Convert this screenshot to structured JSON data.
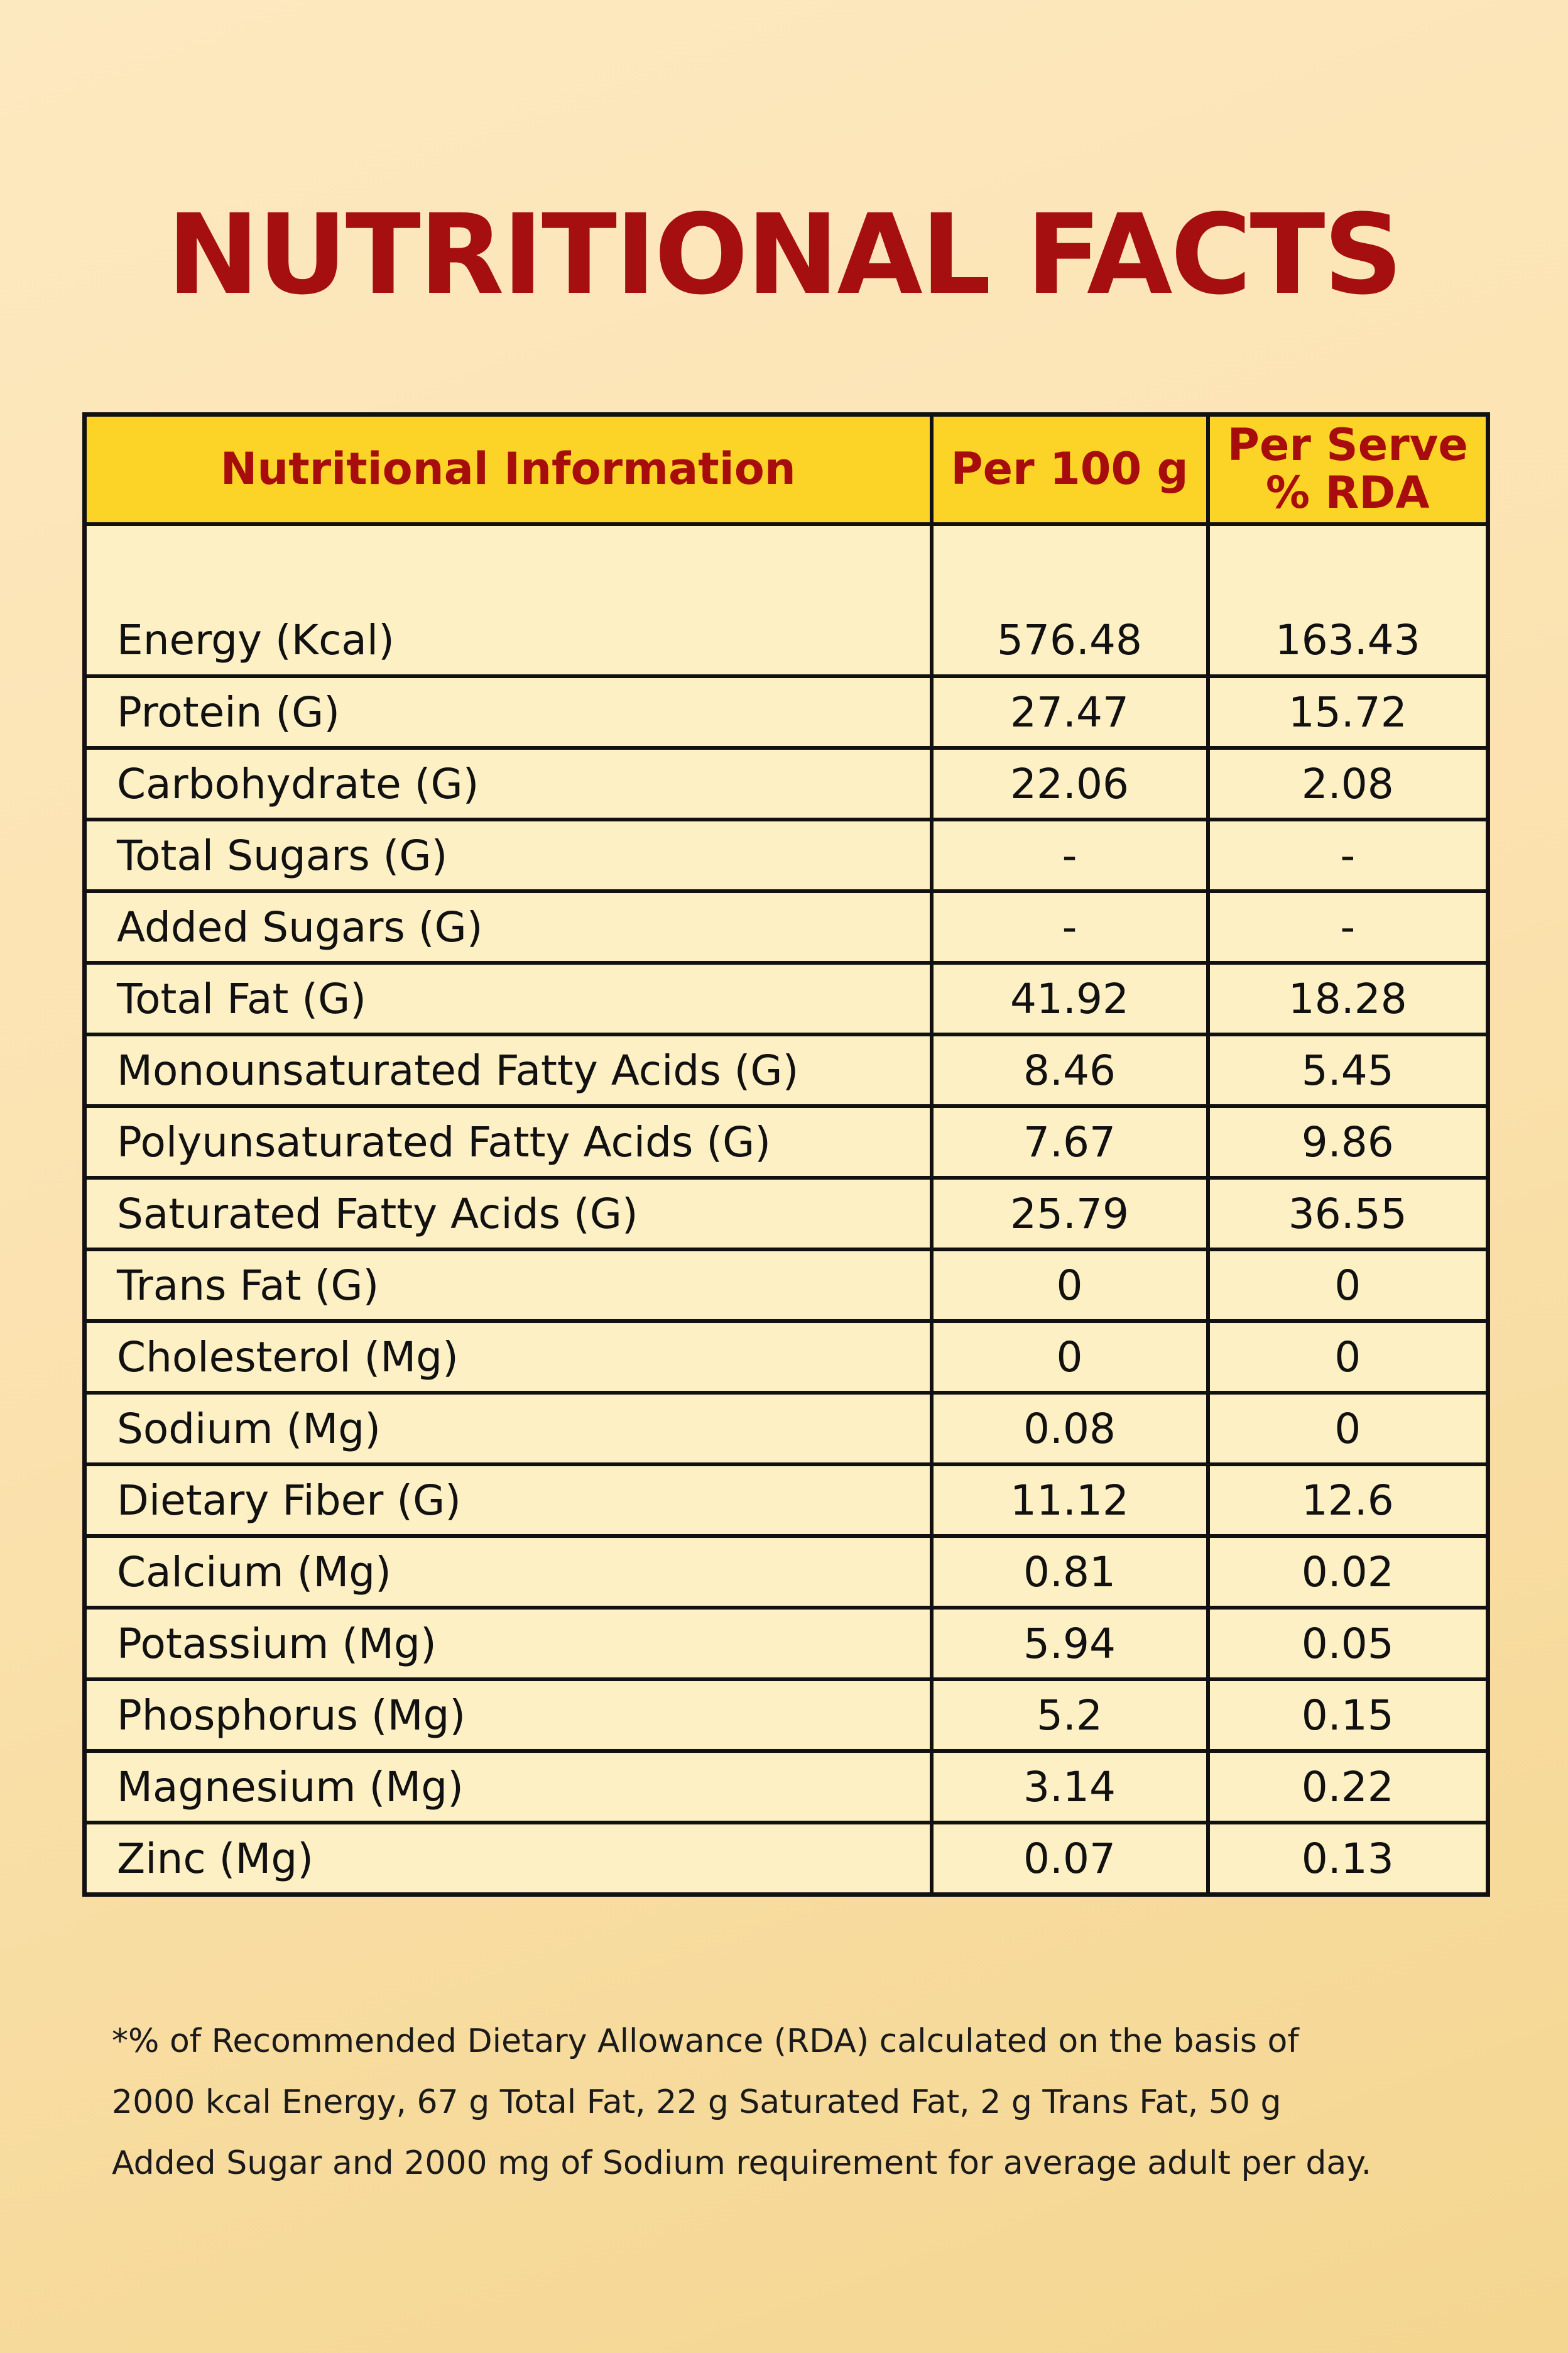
{
  "title": "NUTRITIONAL FACTS",
  "table": {
    "headers": {
      "name": "Nutritional Information",
      "per100": "Per 100 g",
      "perServeLine1": "Per Serve",
      "perServeLine2": "% RDA"
    },
    "rows": [
      {
        "name": "Energy (Kcal)",
        "per100": "576.48",
        "rda": "163.43"
      },
      {
        "name": "Protein (G)",
        "per100": "27.47",
        "rda": "15.72"
      },
      {
        "name": "Carbohydrate (G)",
        "per100": "22.06",
        "rda": "2.08"
      },
      {
        "name": "Total Sugars (G)",
        "per100": "-",
        "rda": "-"
      },
      {
        "name": "Added Sugars (G)",
        "per100": "-",
        "rda": "-"
      },
      {
        "name": "Total Fat (G)",
        "per100": "41.92",
        "rda": "18.28"
      },
      {
        "name": "Monounsaturated Fatty Acids (G)",
        "per100": "8.46",
        "rda": "5.45"
      },
      {
        "name": "Polyunsaturated Fatty Acids (G)",
        "per100": "7.67",
        "rda": "9.86"
      },
      {
        "name": "Saturated Fatty Acids (G)",
        "per100": "25.79",
        "rda": "36.55"
      },
      {
        "name": "Trans Fat (G)",
        "per100": "0",
        "rda": "0"
      },
      {
        "name": "Cholesterol (Mg)",
        "per100": "0",
        "rda": "0"
      },
      {
        "name": "Sodium (Mg)",
        "per100": "0.08",
        "rda": "0"
      },
      {
        "name": "Dietary Fiber (G)",
        "per100": "11.12",
        "rda": "12.6"
      },
      {
        "name": "Calcium (Mg)",
        "per100": "0.81",
        "rda": "0.02"
      },
      {
        "name": "Potassium (Mg)",
        "per100": "5.94",
        "rda": "0.05"
      },
      {
        "name": "Phosphorus (Mg)",
        "per100": "5.2",
        "rda": "0.15"
      },
      {
        "name": "Magnesium (Mg)",
        "per100": "3.14",
        "rda": "0.22"
      },
      {
        "name": "Zinc (Mg)",
        "per100": "0.07",
        "rda": "0.13"
      }
    ]
  },
  "footnote": {
    "line1": "*% of Recommended Dietary Allowance (RDA) calculated on the basis of",
    "line2": "2000 kcal Energy, 67 g Total Fat, 22 g Saturated Fat, 2 g Trans Fat, 50 g",
    "line3": "Added Sugar and 2000 mg of Sodium requirement for average adult per day."
  },
  "colors": {
    "title": "#a60f0f",
    "header_bg": "#fcd428",
    "header_text": "#a80d0d",
    "cell_bg": "#fdf0c4",
    "border": "#111111"
  }
}
